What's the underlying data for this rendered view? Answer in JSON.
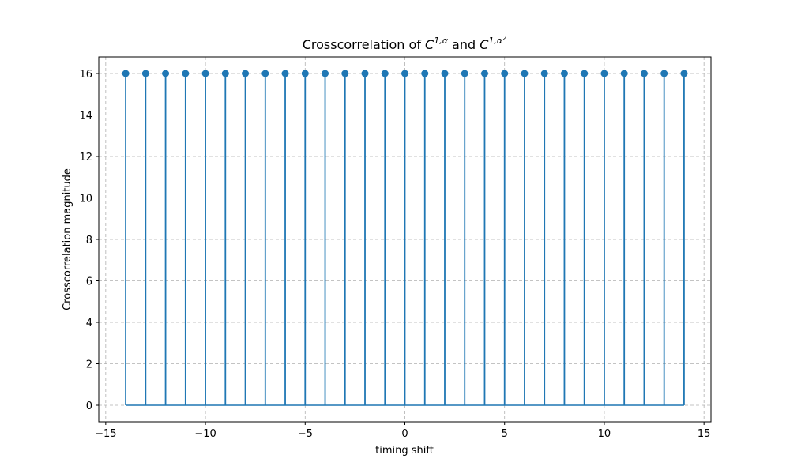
{
  "chart_data": {
    "type": "stem",
    "title": {
      "prefix": "Crosscorrelation of ",
      "sym1": "C",
      "sup1": "1,α",
      "middle": " and ",
      "sym2": "C",
      "sup2": "1,α",
      "sup2_power": "2"
    },
    "xlabel": "timing shift",
    "ylabel": "Crosscorrelation magnitude",
    "xlim": [
      -15.35,
      15.35
    ],
    "ylim": [
      -0.8,
      16.8
    ],
    "xticks": [
      -15,
      -10,
      -5,
      0,
      5,
      10,
      15
    ],
    "xtick_labels": [
      "−15",
      "−10",
      "−5",
      "0",
      "5",
      "10",
      "15"
    ],
    "yticks": [
      0,
      2,
      4,
      6,
      8,
      10,
      12,
      14,
      16
    ],
    "ytick_labels": [
      "0",
      "2",
      "4",
      "6",
      "8",
      "10",
      "12",
      "14",
      "16"
    ],
    "grid": true,
    "color": "#1f77b4",
    "x": [
      -14,
      -13,
      -12,
      -11,
      -10,
      -9,
      -8,
      -7,
      -6,
      -5,
      -4,
      -3,
      -2,
      -1,
      0,
      1,
      2,
      3,
      4,
      5,
      6,
      7,
      8,
      9,
      10,
      11,
      12,
      13,
      14
    ],
    "y": [
      16,
      16,
      16,
      16,
      16,
      16,
      16,
      16,
      16,
      16,
      16,
      16,
      16,
      16,
      16,
      16,
      16,
      16,
      16,
      16,
      16,
      16,
      16,
      16,
      16,
      16,
      16,
      16,
      16
    ]
  }
}
